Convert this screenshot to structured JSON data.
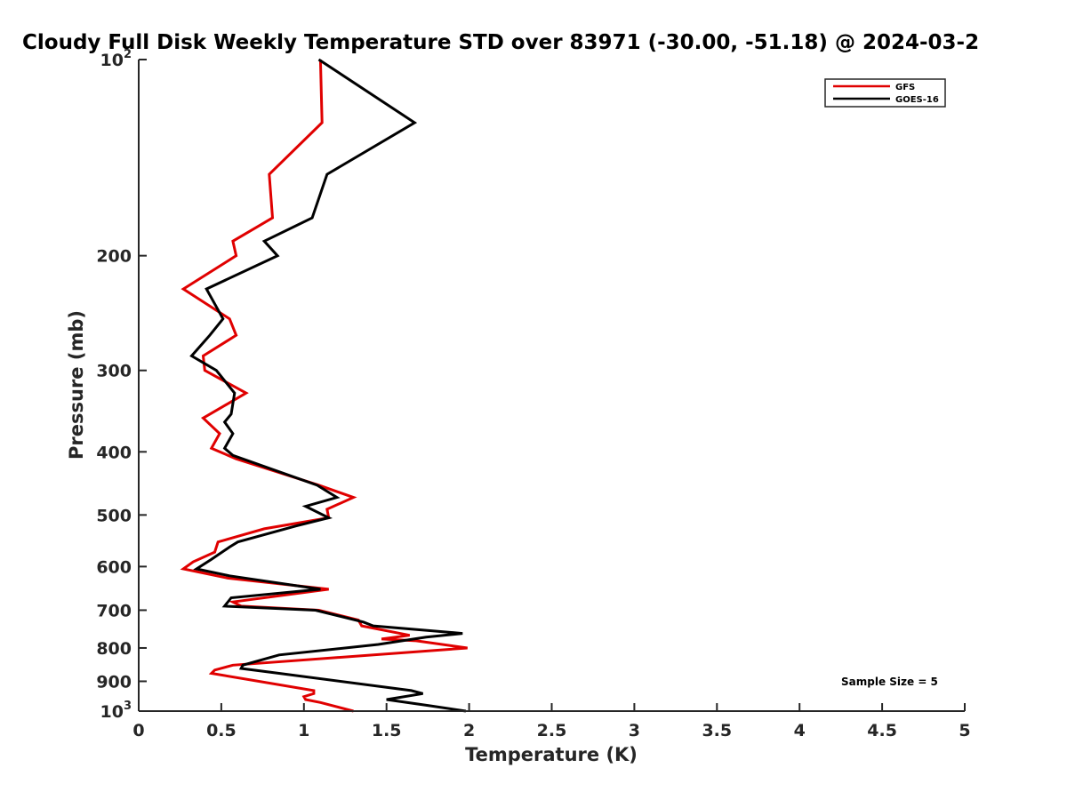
{
  "chart_data": {
    "type": "line",
    "title": "Cloudy Full Disk Weekly Temperature STD over 83971 (-30.00, -51.18) @ 2024-03-2",
    "xlabel": "Temperature (K)",
    "ylabel": "Pressure (mb)",
    "xlim": [
      0,
      5
    ],
    "ylim": [
      100,
      1000
    ],
    "y_scale": "log",
    "y_reversed": true,
    "grid": false,
    "legend_position": "top-right",
    "x_ticks": [
      0,
      0.5,
      1,
      1.5,
      2,
      2.5,
      3,
      3.5,
      4,
      4.5,
      5
    ],
    "x_tick_labels": [
      "0",
      "0.5",
      "1",
      "1.5",
      "2",
      "2.5",
      "3",
      "3.5",
      "4",
      "4.5",
      "5"
    ],
    "y_ticks": [
      100,
      200,
      300,
      400,
      500,
      600,
      700,
      800,
      900,
      1000
    ],
    "y_tick_labels": [
      {
        "base": "10",
        "exp": "2"
      },
      {
        "base": "200",
        "exp": ""
      },
      {
        "base": "300",
        "exp": ""
      },
      {
        "base": "400",
        "exp": ""
      },
      {
        "base": "500",
        "exp": ""
      },
      {
        "base": "600",
        "exp": ""
      },
      {
        "base": "700",
        "exp": ""
      },
      {
        "base": "800",
        "exp": ""
      },
      {
        "base": "900",
        "exp": ""
      },
      {
        "base": "10",
        "exp": "3"
      }
    ],
    "annotation": "Sample Size = 5",
    "series": [
      {
        "name": "GFS",
        "color": "#e00000",
        "points": [
          [
            1.1,
            100
          ],
          [
            1.11,
            125
          ],
          [
            0.79,
            150
          ],
          [
            0.81,
            175
          ],
          [
            0.57,
            190
          ],
          [
            0.59,
            200
          ],
          [
            0.27,
            225
          ],
          [
            0.55,
            250
          ],
          [
            0.59,
            265
          ],
          [
            0.39,
            285
          ],
          [
            0.4,
            300
          ],
          [
            0.65,
            325
          ],
          [
            0.39,
            355
          ],
          [
            0.49,
            375
          ],
          [
            0.44,
            395
          ],
          [
            0.59,
            410
          ],
          [
            1.09,
            450
          ],
          [
            1.3,
            470
          ],
          [
            1.14,
            490
          ],
          [
            1.15,
            505
          ],
          [
            0.76,
            525
          ],
          [
            0.48,
            550
          ],
          [
            0.46,
            570
          ],
          [
            0.33,
            590
          ],
          [
            0.27,
            605
          ],
          [
            0.54,
            625
          ],
          [
            1.15,
            650
          ],
          [
            0.57,
            680
          ],
          [
            0.62,
            690
          ],
          [
            1.09,
            700
          ],
          [
            1.33,
            725
          ],
          [
            1.35,
            740
          ],
          [
            1.64,
            765
          ],
          [
            1.47,
            775
          ],
          [
            1.68,
            780
          ],
          [
            1.99,
            800
          ],
          [
            0.57,
            850
          ],
          [
            0.46,
            865
          ],
          [
            0.44,
            875
          ],
          [
            1.06,
            930
          ],
          [
            1.06,
            940
          ],
          [
            1.0,
            950
          ],
          [
            1.01,
            960
          ],
          [
            1.1,
            970
          ],
          [
            1.3,
            1000
          ]
        ]
      },
      {
        "name": "GOES-16",
        "color": "#000000",
        "points": [
          [
            1.09,
            100
          ],
          [
            1.67,
            125
          ],
          [
            1.14,
            150
          ],
          [
            1.05,
            175
          ],
          [
            0.76,
            190
          ],
          [
            0.84,
            200
          ],
          [
            0.41,
            225
          ],
          [
            0.51,
            250
          ],
          [
            0.43,
            265
          ],
          [
            0.32,
            285
          ],
          [
            0.47,
            300
          ],
          [
            0.58,
            325
          ],
          [
            0.56,
            350
          ],
          [
            0.52,
            360
          ],
          [
            0.57,
            375
          ],
          [
            0.52,
            395
          ],
          [
            0.57,
            405
          ],
          [
            1.08,
            450
          ],
          [
            1.2,
            470
          ],
          [
            1.01,
            485
          ],
          [
            1.15,
            505
          ],
          [
            0.95,
            520
          ],
          [
            0.6,
            550
          ],
          [
            0.55,
            560
          ],
          [
            0.44,
            585
          ],
          [
            0.35,
            605
          ],
          [
            0.55,
            620
          ],
          [
            1.1,
            650
          ],
          [
            0.56,
            670
          ],
          [
            0.52,
            690
          ],
          [
            1.07,
            700
          ],
          [
            1.36,
            730
          ],
          [
            1.42,
            740
          ],
          [
            1.96,
            760
          ],
          [
            1.74,
            770
          ],
          [
            1.45,
            790
          ],
          [
            0.85,
            820
          ],
          [
            0.63,
            850
          ],
          [
            0.62,
            860
          ],
          [
            0.85,
            875
          ],
          [
            1.65,
            930
          ],
          [
            1.72,
            940
          ],
          [
            1.5,
            960
          ],
          [
            1.75,
            980
          ],
          [
            1.98,
            1000
          ]
        ]
      }
    ]
  }
}
